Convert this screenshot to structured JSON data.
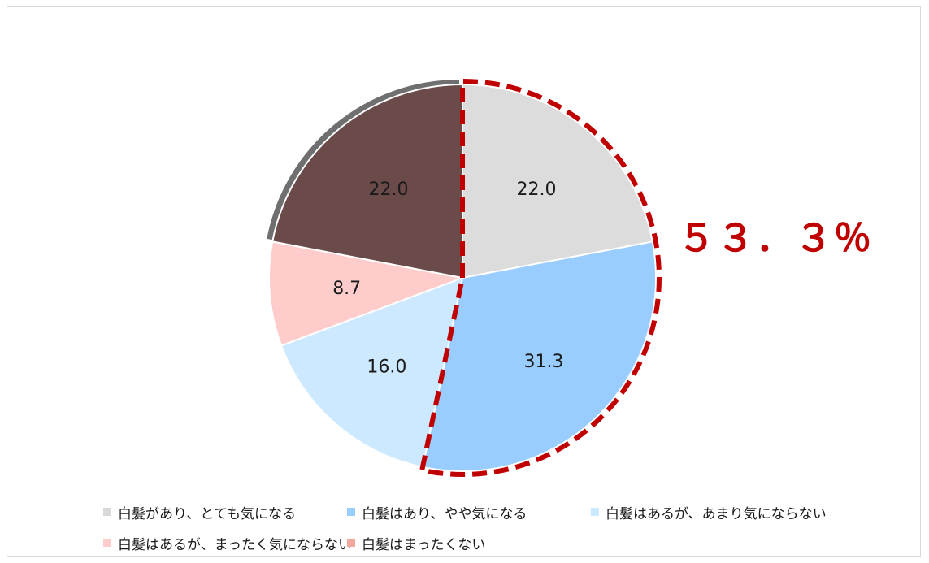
{
  "chart_data": {
    "type": "pie",
    "unit": "%",
    "slices": [
      {
        "name": "白髪があり、とても気になる",
        "value": 22.0,
        "label": "22.0",
        "color": "#dcdcdc"
      },
      {
        "name": "白髪はあり、やや気になる",
        "value": 31.3,
        "label": "31.3",
        "color": "#99ccff"
      },
      {
        "name": "白髪はあるが、あまり気にならない",
        "value": 16.0,
        "label": "16.0",
        "color": "#cce9ff"
      },
      {
        "name": "白髪はあるが、まったく気にならない",
        "value": 8.7,
        "label": "8.7",
        "color": "#ffcccc"
      },
      {
        "name": "白髪はまったくない",
        "value": 22.0,
        "label": "22.0",
        "color": "#6b4a4a"
      }
    ],
    "legend": {
      "position": "bottom",
      "items": [
        {
          "label": "白髪があり、とても気になる",
          "color": "#d9d9d9"
        },
        {
          "label": "白髪はあり、やや気になる",
          "color": "#99ccff"
        },
        {
          "label": "白髪はあるが、あまり気にならない",
          "color": "#cce9ff"
        },
        {
          "label": "白髪はあるが、まったく気にならない",
          "color": "#ffcccc"
        },
        {
          "label": "白髪はまったくない",
          "color": "#f4a6a0"
        }
      ]
    },
    "highlight": {
      "text": "５３．３％",
      "color": "#c00000",
      "covers": [
        "白髪があり、とても気になる",
        "白髪はあり、やや気になる"
      ]
    }
  }
}
